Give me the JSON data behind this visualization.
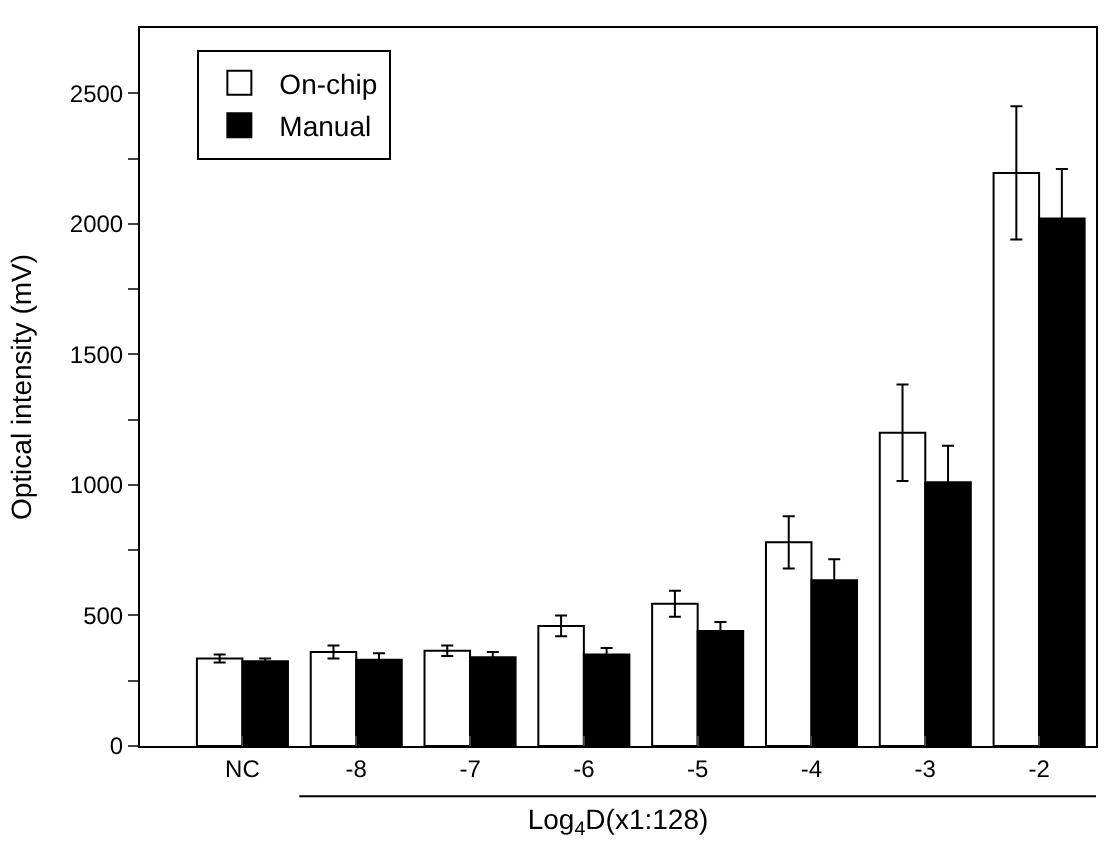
{
  "chart_data": {
    "type": "bar",
    "xlabel": "Log$_{4}$D(x1:128)",
    "ylabel": "Optical intensity (mV)",
    "categories": [
      "NC",
      "-8",
      "-7",
      "-6",
      "-5",
      "-4",
      "-3",
      "-2"
    ],
    "series": [
      {
        "name": "On-chip",
        "color": "#ffffff",
        "values": [
          335,
          360,
          365,
          460,
          545,
          780,
          1200,
          2195
        ],
        "errors": [
          15,
          25,
          20,
          40,
          50,
          100,
          185,
          255
        ]
      },
      {
        "name": "Manual",
        "color": "#000000",
        "values": [
          325,
          330,
          340,
          350,
          440,
          635,
          1010,
          2020
        ],
        "errors": [
          10,
          25,
          20,
          25,
          35,
          80,
          140,
          190
        ]
      }
    ],
    "ylim": [
      0,
      2750
    ],
    "yticks": [
      0,
      {
        "value": 250,
        "label": null
      },
      500,
      {
        "value": 750,
        "label": null
      },
      1000,
      {
        "value": 1250,
        "label": null
      },
      1500,
      {
        "value": 1750,
        "label": null
      },
      2000,
      {
        "value": 2250,
        "label": null
      },
      2500
    ],
    "legend": "top left"
  }
}
